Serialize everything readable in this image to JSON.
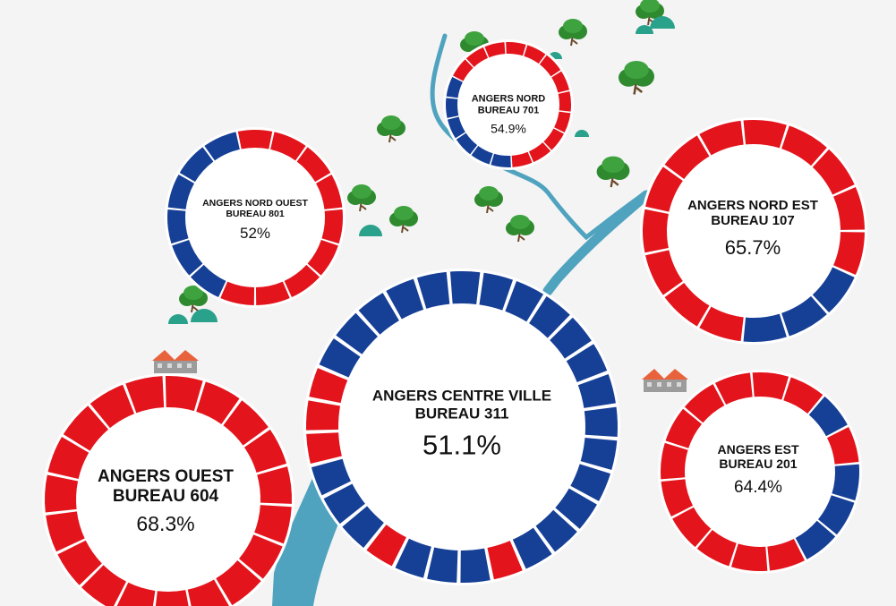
{
  "chart_data": [
    {
      "type": "pie",
      "name_line1": "ANGERS NORD",
      "name_line2": "BUREAU 701",
      "value_label": "54.9%",
      "value": 54.9,
      "segments": [
        "red",
        "red",
        "red",
        "red",
        "red",
        "red",
        "red",
        "red",
        "red",
        "blue",
        "blue",
        "blue",
        "blue",
        "blue",
        "blue",
        "red",
        "red",
        "red"
      ]
    },
    {
      "type": "pie",
      "name_line1": "ANGERS NORD OUEST",
      "name_line2": "BUREAU 801",
      "value_label": "52%",
      "value": 52,
      "segments": [
        "red",
        "red",
        "red",
        "red",
        "red",
        "red",
        "red",
        "red",
        "red",
        "blue",
        "blue",
        "blue",
        "blue",
        "blue",
        "blue"
      ]
    },
    {
      "type": "pie",
      "name_line1": "ANGERS NORD EST",
      "name_line2": "BUREAU 107",
      "value_label": "65.7%",
      "value": 65.7,
      "segments": [
        "red",
        "red",
        "red",
        "red",
        "red",
        "blue",
        "blue",
        "blue",
        "red",
        "red",
        "red",
        "red",
        "red",
        "red",
        "red"
      ]
    },
    {
      "type": "pie",
      "name_line1": "ANGERS CENTRE VILLE",
      "name_line2": "BUREAU 311",
      "value_label": "51.1%",
      "value": 51.1,
      "segments": [
        "blue",
        "blue",
        "blue",
        "blue",
        "blue",
        "blue",
        "blue",
        "blue",
        "blue",
        "blue",
        "blue",
        "blue",
        "blue",
        "red",
        "blue",
        "blue",
        "blue",
        "red",
        "blue",
        "blue",
        "blue",
        "red",
        "red",
        "red",
        "blue",
        "blue",
        "blue",
        "blue",
        "blue"
      ]
    },
    {
      "type": "pie",
      "name_line1": "ANGERS EST",
      "name_line2": "BUREAU 201",
      "value_label": "64.4%",
      "value": 64.4,
      "segments": [
        "red",
        "red",
        "blue",
        "red",
        "blue",
        "blue",
        "blue",
        "red",
        "red",
        "red",
        "red",
        "red",
        "red",
        "red",
        "red",
        "red"
      ]
    },
    {
      "type": "pie",
      "name_line1": "ANGERS OUEST",
      "name_line2": "BUREAU 604",
      "value_label": "68.3%",
      "value": 68.3,
      "segments": [
        "red",
        "red",
        "red",
        "red",
        "red",
        "red",
        "red",
        "red",
        "red",
        "red",
        "red",
        "red",
        "red",
        "red",
        "red",
        "red",
        "red",
        "red",
        "red"
      ]
    }
  ],
  "colors": {
    "red": "#e3141c",
    "blue": "#163f96",
    "river": "#4fa3be",
    "tree": "#2f8a2f",
    "bush": "#2aa18a",
    "roof": "#e8623c",
    "wall": "#9c9c9c",
    "background": "#f4f4f5"
  },
  "decorations": {
    "trees": 11,
    "bushes": 6,
    "houses": 2,
    "river": true,
    "icons": [
      "tree-icon",
      "bush-icon",
      "house-icon"
    ]
  }
}
